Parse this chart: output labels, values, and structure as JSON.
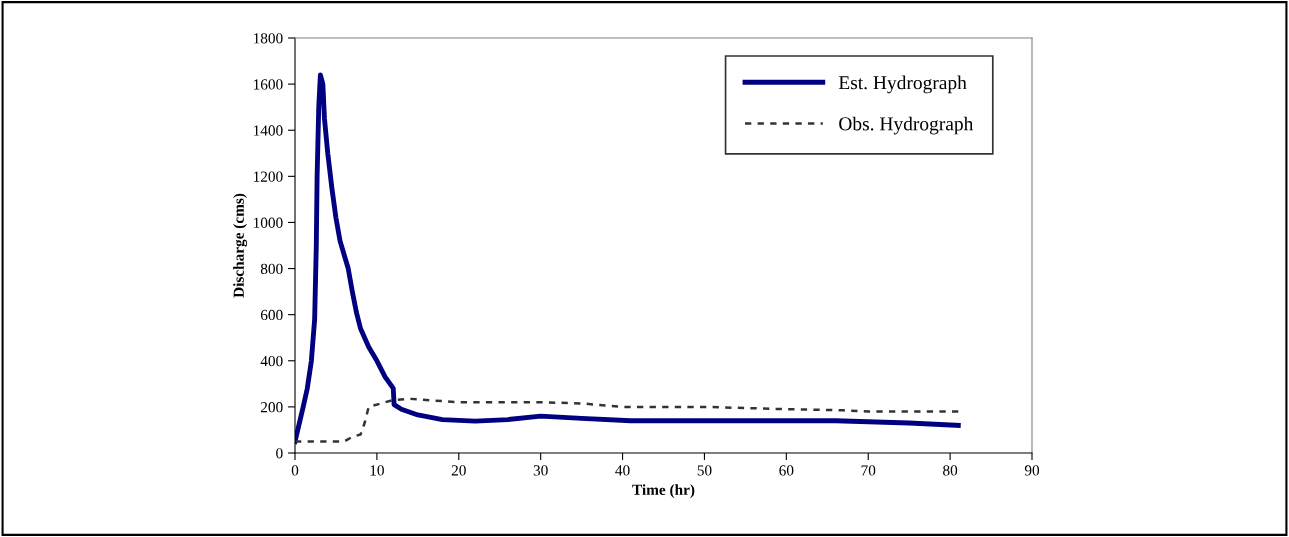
{
  "chart_data": {
    "type": "line",
    "xlabel": "Time (hr)",
    "ylabel": "Discharge (cms)",
    "xlim": [
      0,
      90
    ],
    "xticks": [
      0,
      10,
      20,
      30,
      40,
      50,
      60,
      70,
      80,
      90
    ],
    "ylim": [
      0,
      1800
    ],
    "yticks": [
      0,
      200,
      400,
      600,
      800,
      1000,
      1200,
      1400,
      1600,
      1800
    ],
    "grid": false,
    "legend": "top right",
    "marker": "none",
    "series": [
      {
        "name": "Est. Hydrograph",
        "color": "#000080",
        "line_style": "solid",
        "x": [
          0,
          1,
          1.5,
          2,
          2.4,
          2.6,
          2.7,
          2.9,
          3.1,
          3.4,
          3.6,
          4,
          4.5,
          5,
          5.5,
          6,
          6.5,
          7,
          7.5,
          8,
          9,
          10,
          11,
          12,
          12.1,
          13,
          15,
          18,
          22,
          26,
          30,
          35,
          41,
          50,
          66,
          75,
          81
        ],
        "values": [
          50,
          200,
          280,
          400,
          580,
          900,
          1200,
          1500,
          1640,
          1600,
          1450,
          1300,
          1150,
          1020,
          920,
          860,
          800,
          700,
          610,
          540,
          460,
          400,
          330,
          280,
          210,
          190,
          165,
          145,
          138,
          145,
          160,
          150,
          140,
          140,
          140,
          130,
          120
        ]
      },
      {
        "name": "Obs. Hydrograph",
        "color": "#333333",
        "line_style": "dotted",
        "x": [
          0,
          6,
          7,
          8,
          8.5,
          9,
          11,
          12,
          14,
          20,
          30,
          35,
          40,
          50,
          60,
          67,
          70,
          81
        ],
        "values": [
          50,
          50,
          70,
          80,
          130,
          200,
          220,
          230,
          235,
          220,
          220,
          215,
          200,
          200,
          190,
          185,
          180,
          180
        ]
      }
    ]
  }
}
